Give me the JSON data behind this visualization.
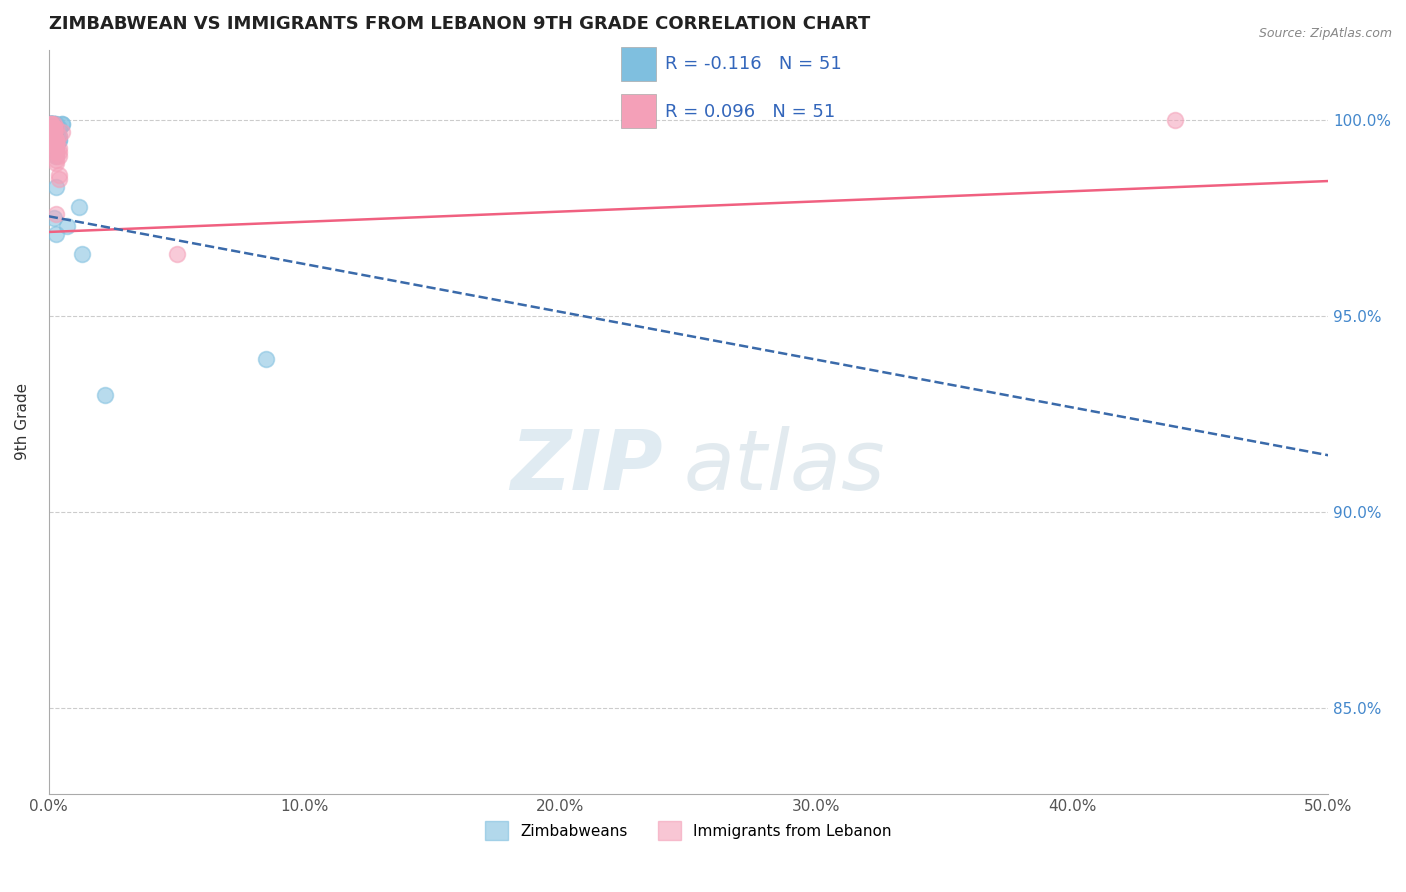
{
  "title": "ZIMBABWEAN VS IMMIGRANTS FROM LEBANON 9TH GRADE CORRELATION CHART",
  "source": "Source: ZipAtlas.com",
  "xlabel_ticks": [
    "0.0%",
    "10.0%",
    "20.0%",
    "30.0%",
    "40.0%",
    "50.0%"
  ],
  "xlabel_vals": [
    0.0,
    0.1,
    0.2,
    0.3,
    0.4,
    0.5
  ],
  "ylabel_ticks": [
    "85.0%",
    "90.0%",
    "95.0%",
    "100.0%"
  ],
  "ylabel_vals": [
    0.85,
    0.9,
    0.95,
    1.0
  ],
  "xlim": [
    0.0,
    0.5
  ],
  "ylim": [
    0.828,
    1.018
  ],
  "ylabel": "9th Grade",
  "legend_blue_r": "R = -0.116",
  "legend_blue_n": "N = 51",
  "legend_pink_r": "R = 0.096",
  "legend_pink_n": "N = 51",
  "legend_labels": [
    "Zimbabweans",
    "Immigrants from Lebanon"
  ],
  "blue_color": "#7fbfdf",
  "pink_color": "#f4a0b8",
  "blue_line_color": "#3a6aaa",
  "pink_line_color": "#f06080",
  "blue_line_x": [
    0.0,
    0.5
  ],
  "blue_line_y": [
    0.9755,
    0.9145
  ],
  "pink_line_x": [
    0.0,
    0.5
  ],
  "pink_line_y": [
    0.9715,
    0.9845
  ],
  "blue_scatter_x": [
    0.001,
    0.002,
    0.003,
    0.002,
    0.004,
    0.001,
    0.003,
    0.005,
    0.002,
    0.001,
    0.003,
    0.004,
    0.002,
    0.001,
    0.003,
    0.002,
    0.001,
    0.004,
    0.003,
    0.001,
    0.002,
    0.001,
    0.005,
    0.003,
    0.002,
    0.001,
    0.002,
    0.003,
    0.001,
    0.012,
    0.003,
    0.001,
    0.007,
    0.002,
    0.003,
    0.001,
    0.002,
    0.001,
    0.013,
    0.002,
    0.001,
    0.003,
    0.002,
    0.001,
    0.004,
    0.003,
    0.085,
    0.002,
    0.001,
    0.003,
    0.022
  ],
  "blue_scatter_y": [
    0.999,
    0.999,
    0.998,
    0.999,
    0.998,
    0.999,
    0.997,
    0.999,
    0.998,
    0.999,
    0.997,
    0.996,
    0.999,
    0.999,
    0.997,
    0.998,
    0.999,
    0.995,
    0.997,
    0.999,
    0.999,
    0.997,
    0.999,
    0.996,
    0.998,
    0.997,
    0.994,
    0.997,
    0.999,
    0.978,
    0.991,
    0.996,
    0.973,
    0.975,
    0.971,
    0.997,
    0.998,
    0.997,
    0.966,
    0.998,
    0.999,
    0.999,
    0.996,
    0.999,
    0.995,
    0.983,
    0.939,
    0.997,
    0.999,
    0.993,
    0.93
  ],
  "pink_scatter_x": [
    0.001,
    0.003,
    0.002,
    0.001,
    0.004,
    0.002,
    0.003,
    0.001,
    0.005,
    0.002,
    0.003,
    0.004,
    0.001,
    0.002,
    0.003,
    0.001,
    0.002,
    0.004,
    0.003,
    0.001,
    0.002,
    0.001,
    0.003,
    0.002,
    0.004,
    0.001,
    0.003,
    0.002,
    0.001,
    0.003,
    0.002,
    0.001,
    0.004,
    0.002,
    0.003,
    0.001,
    0.002,
    0.003,
    0.001,
    0.05,
    0.002,
    0.001,
    0.003,
    0.002,
    0.001,
    0.004,
    0.003,
    0.002,
    0.001,
    0.003,
    0.44
  ],
  "pink_scatter_y": [
    0.999,
    0.998,
    0.999,
    0.997,
    0.996,
    0.998,
    0.994,
    0.999,
    0.997,
    0.998,
    0.995,
    0.993,
    0.999,
    0.997,
    0.994,
    0.998,
    0.996,
    0.992,
    0.995,
    0.998,
    0.997,
    0.994,
    0.995,
    0.998,
    0.991,
    0.997,
    0.994,
    0.998,
    0.995,
    0.989,
    0.997,
    0.996,
    0.985,
    0.993,
    0.976,
    0.998,
    0.995,
    0.99,
    0.997,
    0.966,
    0.995,
    0.998,
    0.992,
    0.994,
    0.997,
    0.986,
    0.993,
    0.995,
    0.997,
    0.991,
    1.0
  ]
}
